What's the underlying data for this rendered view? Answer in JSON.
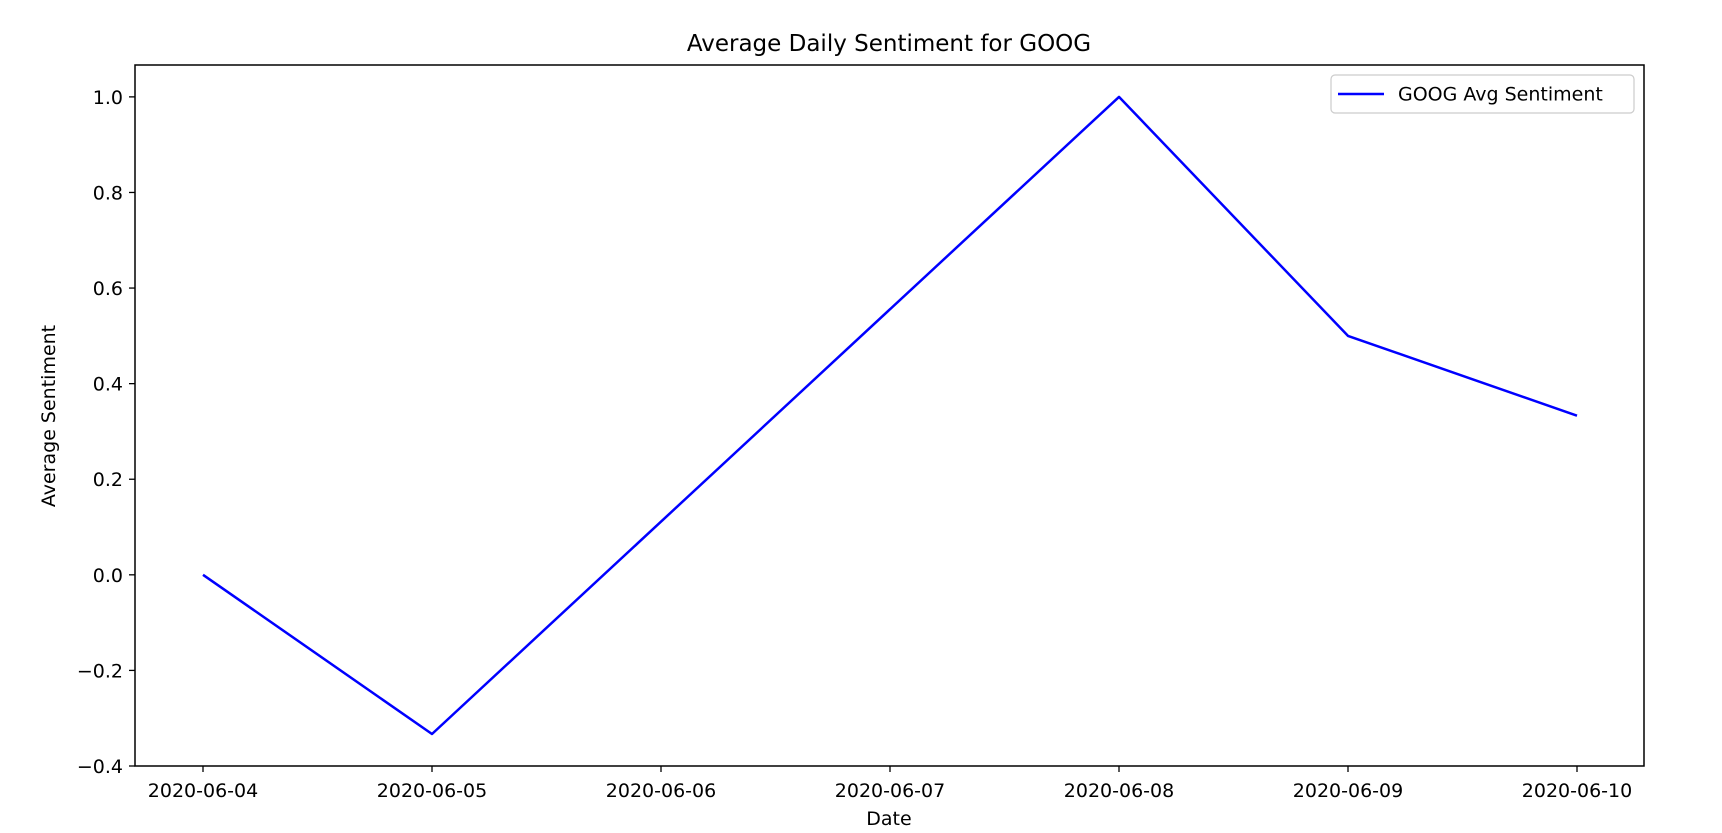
{
  "chart_data": {
    "type": "line",
    "title": "Average Daily Sentiment for GOOG",
    "xlabel": "Date",
    "ylabel": "Average Sentiment",
    "x": [
      "2020-06-04",
      "2020-06-05",
      "2020-06-06",
      "2020-06-07",
      "2020-06-08",
      "2020-06-09",
      "2020-06-10"
    ],
    "series": [
      {
        "name": "GOOG Avg Sentiment",
        "color": "#0000ff",
        "points": [
          {
            "x": "2020-06-04",
            "y": 0.0
          },
          {
            "x": "2020-06-05",
            "y": -0.333
          },
          {
            "x": "2020-06-08",
            "y": 1.0
          },
          {
            "x": "2020-06-09",
            "y": 0.5
          },
          {
            "x": "2020-06-10",
            "y": 0.333
          }
        ]
      }
    ],
    "xticks": [
      "2020-06-04",
      "2020-06-05",
      "2020-06-06",
      "2020-06-07",
      "2020-06-08",
      "2020-06-09",
      "2020-06-10"
    ],
    "yticks": [
      -0.4,
      -0.2,
      0.0,
      0.2,
      0.4,
      0.6,
      0.8,
      1.0
    ],
    "ytick_labels": [
      "−0.4",
      "−0.2",
      "0.0",
      "0.2",
      "0.4",
      "0.6",
      "0.8",
      "1.0"
    ],
    "xlim": [
      "2020-06-03.7",
      "2020-06-10.3"
    ],
    "ylim": [
      -0.4,
      1.0667
    ],
    "grid": false,
    "legend": "upper right"
  }
}
